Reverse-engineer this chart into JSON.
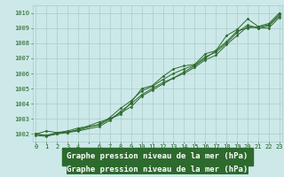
{
  "title": "Graphe pression niveau de la mer (hPa)",
  "series_x": [
    [
      0,
      1,
      2,
      3,
      4,
      6,
      7,
      8,
      9,
      10,
      11,
      12,
      13,
      14,
      15,
      16,
      17,
      18,
      19,
      20,
      21,
      22,
      23
    ],
    [
      0,
      1,
      2,
      3,
      4,
      6,
      7,
      8,
      9,
      10,
      11,
      12,
      13,
      14,
      15,
      16,
      17,
      18,
      19,
      20,
      21,
      22,
      23
    ],
    [
      0,
      1,
      2,
      3,
      4,
      6,
      7,
      8,
      9,
      10,
      11,
      12,
      13,
      14,
      15,
      16,
      17,
      18,
      19,
      20,
      21,
      22,
      23
    ],
    [
      0,
      1,
      2,
      3,
      4,
      6,
      7,
      8,
      9,
      10,
      11,
      12,
      13,
      14,
      15,
      16,
      17,
      18,
      19,
      20,
      21,
      22,
      23
    ]
  ],
  "series_y": [
    [
      1002.0,
      1002.2,
      1002.1,
      1002.1,
      1002.3,
      1002.8,
      1003.0,
      1003.3,
      1004.1,
      1005.0,
      1005.2,
      1005.8,
      1006.3,
      1006.5,
      1006.6,
      1007.3,
      1007.5,
      1008.5,
      1008.9,
      1009.6,
      1009.1,
      1009.3,
      1010.0
    ],
    [
      1002.0,
      1001.9,
      1002.1,
      1002.2,
      1002.4,
      1002.6,
      1003.0,
      1003.4,
      1003.8,
      1004.5,
      1004.9,
      1005.3,
      1005.7,
      1006.1,
      1006.5,
      1007.0,
      1007.5,
      1008.1,
      1008.8,
      1009.0,
      1009.1,
      1009.2,
      1009.9
    ],
    [
      1001.9,
      1001.85,
      1002.0,
      1002.1,
      1002.2,
      1002.5,
      1002.9,
      1003.5,
      1004.0,
      1004.6,
      1005.0,
      1005.4,
      1005.7,
      1006.0,
      1006.4,
      1006.9,
      1007.2,
      1007.9,
      1008.5,
      1009.1,
      1009.0,
      1009.0,
      1009.7
    ],
    [
      1002.0,
      1001.9,
      1002.05,
      1002.15,
      1002.25,
      1002.65,
      1003.1,
      1003.7,
      1004.2,
      1004.85,
      1005.15,
      1005.6,
      1006.0,
      1006.3,
      1006.55,
      1007.1,
      1007.4,
      1008.0,
      1008.7,
      1009.2,
      1009.0,
      1009.15,
      1009.8
    ]
  ],
  "line_color": "#2d6a2d",
  "marker_color": "#2d6a2d",
  "bg_color": "#cce8e8",
  "grid_color": "#aacccc",
  "ylim": [
    1001.5,
    1010.5
  ],
  "yticks": [
    1002,
    1003,
    1004,
    1005,
    1006,
    1007,
    1008,
    1009,
    1010
  ],
  "xtick_positions": [
    0,
    1,
    2,
    3,
    4,
    5,
    6,
    7,
    8,
    9,
    10,
    11,
    12,
    13,
    14,
    15,
    16,
    17,
    18,
    19,
    20,
    21,
    22,
    23
  ],
  "xtick_labels": [
    "0",
    "1",
    "2",
    "3",
    "4",
    "",
    "6",
    "7",
    "8",
    "9",
    "10",
    "11",
    "12",
    "13",
    "14",
    "15",
    "16",
    "17",
    "18",
    "19",
    "20",
    "21",
    "22",
    "23"
  ],
  "xlim": [
    -0.3,
    23.3
  ],
  "title_fontsize": 6.5,
  "tick_fontsize": 5,
  "title_color": "#1a5c1a",
  "tick_color": "#1a5c1a",
  "bottom_bar_color": "#2d6a2d"
}
